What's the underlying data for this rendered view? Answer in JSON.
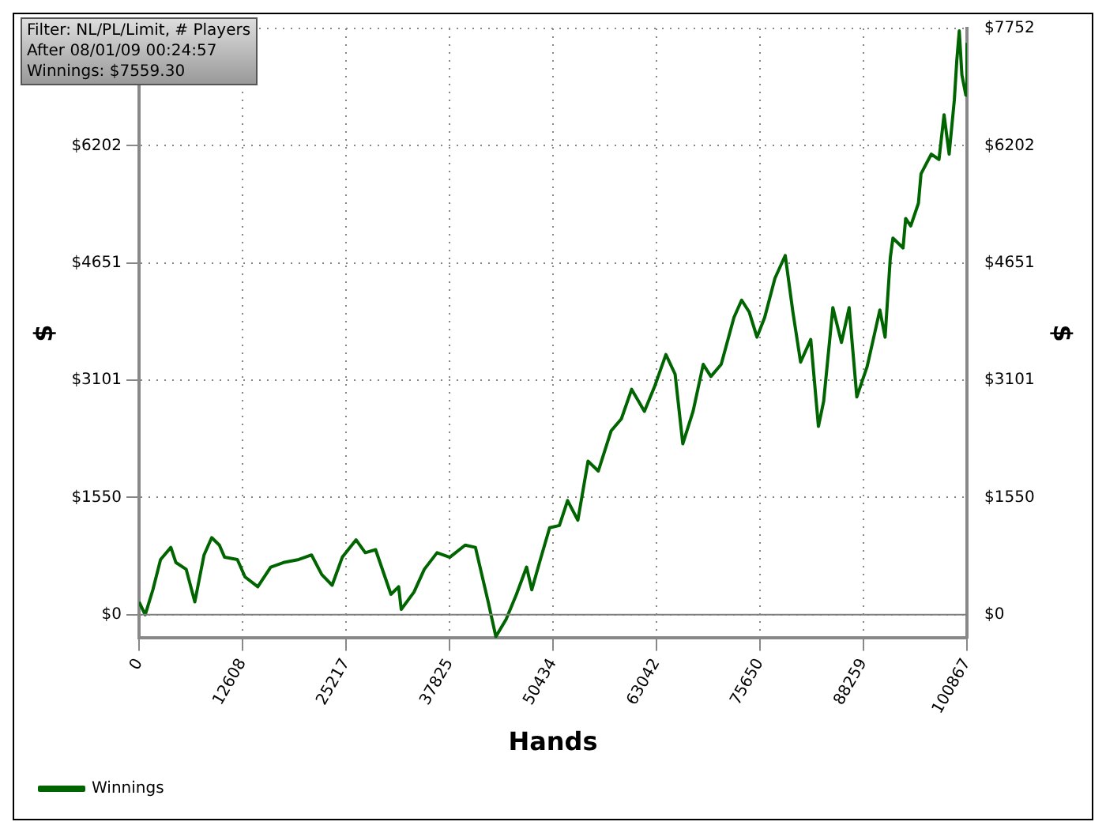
{
  "chart_data": {
    "type": "line",
    "xlabel": "Hands",
    "ylabel": "$",
    "y2label": "$",
    "annotations": [
      "Filter: NL/PL/Limit, # Players",
      "After 08/01/09 00:24:57",
      "Winnings: $7559.30"
    ],
    "series": [
      {
        "name": "Winnings",
        "color": "#006400",
        "x": [
          0,
          749,
          1684,
          2620,
          3874,
          4491,
          5745,
          6793,
          7916,
          8852,
          9787,
          10424,
          11977,
          12913,
          14466,
          16038,
          17591,
          19463,
          21016,
          22270,
          23524,
          24759,
          26443,
          27566,
          28820,
          30692,
          31627,
          31945,
          33498,
          34752,
          36305,
          37858,
          39730,
          40984,
          42537,
          43473,
          44727,
          45981,
          47216,
          47852,
          48788,
          50023,
          51215,
          52210,
          53465,
          54700,
          55955,
          57508,
          58762,
          60016,
          61569,
          62823,
          64189,
          65312,
          66248,
          67501,
          68736,
          69672,
          70926,
          72479,
          73415,
          74351,
          75286,
          76222,
          77476,
          78730,
          79665,
          80601,
          81836,
          82772,
          83408,
          84531,
          85579,
          86515,
          87451,
          88704,
          89640,
          90257,
          90894,
          91530,
          91848,
          93083,
          93402,
          94019,
          94955,
          95273,
          96527,
          97463,
          98080,
          98698,
          99334,
          99633,
          99932,
          100250,
          100737,
          100867
        ],
        "values": [
          170,
          0,
          330,
          730,
          890,
          690,
          600,
          170,
          790,
          1020,
          920,
          760,
          730,
          500,
          370,
          630,
          690,
          730,
          790,
          530,
          390,
          760,
          990,
          820,
          860,
          270,
          370,
          70,
          300,
          600,
          820,
          760,
          920,
          890,
          170,
          -290,
          -60,
          270,
          630,
          330,
          690,
          1150,
          1180,
          1510,
          1250,
          2030,
          1900,
          2430,
          2590,
          2980,
          2690,
          3020,
          3440,
          3180,
          2260,
          2690,
          3310,
          3150,
          3310,
          3930,
          4160,
          4000,
          3670,
          3930,
          4450,
          4750,
          4000,
          3340,
          3640,
          2490,
          2820,
          4060,
          3600,
          4060,
          2880,
          3280,
          3730,
          4030,
          3670,
          4720,
          4980,
          4850,
          5240,
          5140,
          5440,
          5830,
          6090,
          6020,
          6610,
          6090,
          6810,
          7330,
          7720,
          7140,
          6870,
          7560
        ]
      }
    ],
    "xlim": [
      0,
      100867
    ],
    "xticks": [
      0,
      12608,
      25217,
      37825,
      50434,
      63042,
      75650,
      88259,
      100867
    ],
    "ylim": [
      -310,
      7752
    ],
    "yticks": [
      {
        "value": 0,
        "label": "$0"
      },
      {
        "value": 1550,
        "label": "$1550"
      },
      {
        "value": 3101,
        "label": "$3101"
      },
      {
        "value": 4651,
        "label": "$4651"
      },
      {
        "value": 6202,
        "label": "$6202"
      },
      {
        "value": 7752,
        "label": null
      }
    ],
    "y2lim": [
      -310,
      7752
    ],
    "y2ticks": [
      {
        "value": 0,
        "label": "$0"
      },
      {
        "value": 1550,
        "label": "$1550"
      },
      {
        "value": 3101,
        "label": "$3101"
      },
      {
        "value": 4651,
        "label": "$4651"
      },
      {
        "value": 6202,
        "label": "$6202"
      },
      {
        "value": 7752,
        "label": "$7752"
      }
    ],
    "ref_lines": [
      {
        "axis": "y",
        "value": 0,
        "color": "#808080"
      }
    ],
    "grid": true,
    "legend": "bottom left",
    "marker": "none",
    "line_style": "solid"
  }
}
